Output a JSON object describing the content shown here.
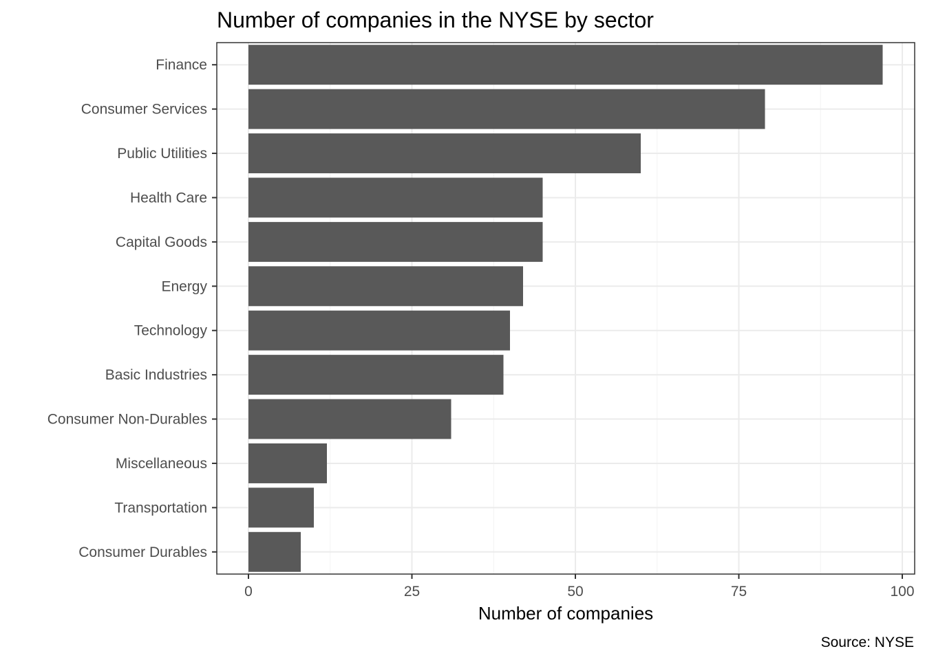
{
  "chart_data": {
    "type": "bar",
    "orientation": "horizontal",
    "title": "Number of companies in the NYSE by sector",
    "xlabel": "Number of companies",
    "ylabel": "",
    "caption": "Source: NYSE",
    "categories": [
      "Finance",
      "Consumer Services",
      "Public Utilities",
      "Health Care",
      "Capital Goods",
      "Energy",
      "Technology",
      "Basic Industries",
      "Consumer Non-Durables",
      "Miscellaneous",
      "Transportation",
      "Consumer Durables"
    ],
    "values": [
      97,
      79,
      60,
      45,
      45,
      42,
      40,
      39,
      31,
      12,
      10,
      8
    ],
    "xlim": [
      0,
      100
    ],
    "xticks": [
      0,
      25,
      50,
      75,
      100
    ],
    "grid": true,
    "bar_color": "#595959"
  }
}
